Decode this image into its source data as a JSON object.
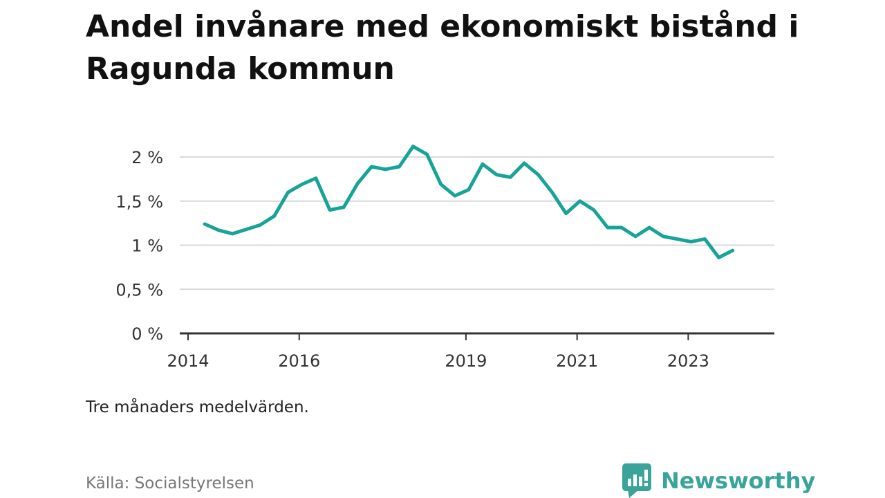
{
  "title": "Andel invånare med ekonomiskt bistånd i Ragunda kommun",
  "note": "Tre månaders medelvärden.",
  "source": "Källa: Socialstyrelsen",
  "brand": {
    "name": "Newsworthy",
    "icon": "newsworthy-logo-icon"
  },
  "colors": {
    "line": "#17a398",
    "grid": "#d9d9d9",
    "axis": "#333333",
    "brand": "#3aa39a"
  },
  "chart_data": {
    "type": "line",
    "title": "Andel invånare med ekonomiskt bistånd i Ragunda kommun",
    "xlabel": "",
    "ylabel": "",
    "xlim": [
      2014,
      2024.55
    ],
    "ylim": [
      0,
      2
    ],
    "grid": true,
    "y_ticks": [
      {
        "value": 0,
        "label": "0 %"
      },
      {
        "value": 0.5,
        "label": "0,5 %"
      },
      {
        "value": 1,
        "label": "1 %"
      },
      {
        "value": 1.5,
        "label": "1,5 %"
      },
      {
        "value": 2,
        "label": "2 %"
      }
    ],
    "x_ticks": [
      {
        "value": 2014,
        "label": "2014"
      },
      {
        "value": 2016,
        "label": "2016"
      },
      {
        "value": 2019,
        "label": "2019"
      },
      {
        "value": 2021,
        "label": "2021"
      },
      {
        "value": 2023,
        "label": "2023"
      }
    ],
    "series": [
      {
        "x": [
          2014.3,
          2014.55,
          2014.8,
          2015.05,
          2015.3,
          2015.55,
          2015.8,
          2016.05,
          2016.3,
          2016.55,
          2016.8,
          2017.05,
          2017.3,
          2017.55,
          2017.8,
          2018.05,
          2018.3,
          2018.55,
          2018.8,
          2019.05,
          2019.3,
          2019.55,
          2019.8,
          2020.05,
          2020.3,
          2020.55,
          2020.8,
          2021.05,
          2021.3,
          2021.55,
          2021.8,
          2022.05,
          2022.3,
          2022.55,
          2022.8,
          2023.05,
          2023.3,
          2023.55,
          2023.8
        ],
        "y": [
          1.24,
          1.17,
          1.13,
          1.18,
          1.23,
          1.33,
          1.6,
          1.69,
          1.76,
          1.4,
          1.43,
          1.7,
          1.89,
          1.86,
          1.89,
          2.12,
          2.03,
          1.69,
          1.56,
          1.63,
          1.92,
          1.8,
          1.77,
          1.93,
          1.8,
          1.6,
          1.36,
          1.5,
          1.4,
          1.2,
          1.2,
          1.1,
          1.2,
          1.1,
          1.07,
          1.04,
          1.07,
          0.86,
          0.94
        ]
      }
    ]
  }
}
